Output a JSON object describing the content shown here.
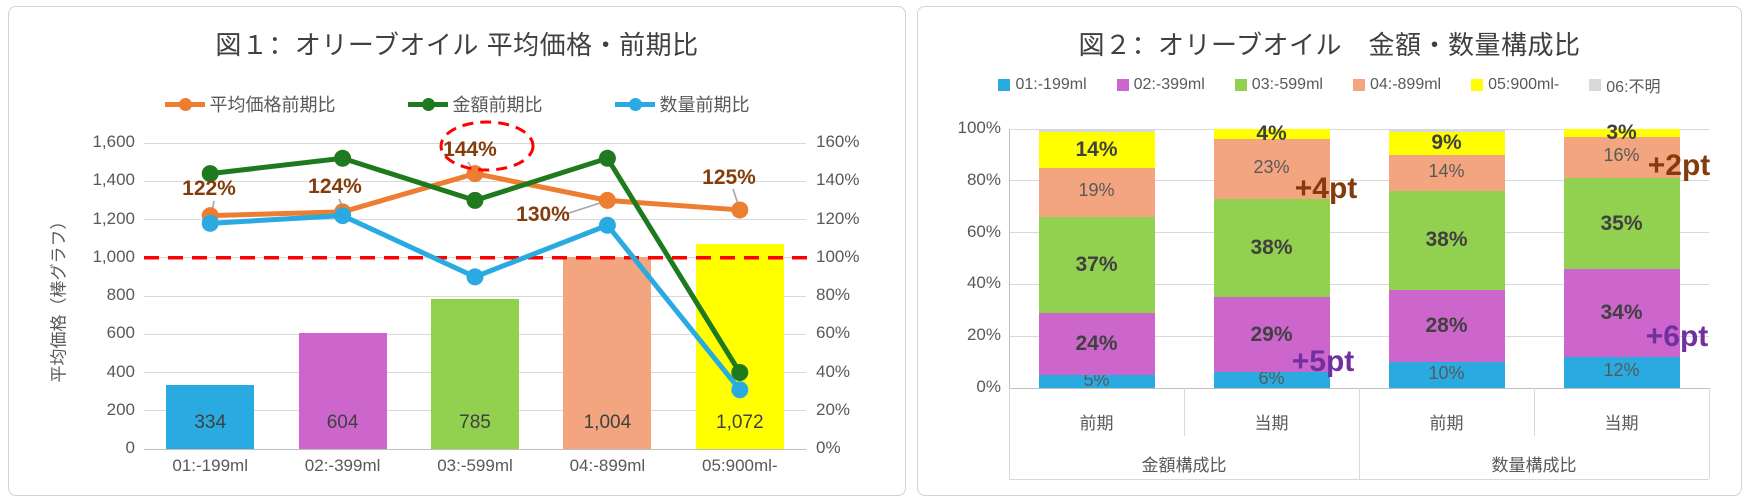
{
  "page": {
    "background": "#FFFFFF",
    "title_color": "#404040",
    "axis_text_color": "#595959"
  },
  "chart_data": [
    {
      "figure": "図１",
      "type": "combo-bar-line",
      "title": "図１：オリーブオイル 平均価格・前期比",
      "categories": [
        "01:-199ml",
        "02:-399ml",
        "03:-599ml",
        "04:-899ml",
        "05:900ml-"
      ],
      "bars": {
        "name": "平均価格",
        "axis_title": "平均価格（棒グラフ）",
        "values": [
          334,
          604,
          785,
          1004,
          1072
        ],
        "labels": [
          "334",
          "604",
          "785",
          "1,004",
          "1,072"
        ],
        "colors": [
          "#29ABE2",
          "#CC66CC",
          "#92D050",
          "#F2A57E",
          "#FFFF00"
        ]
      },
      "left_axis": {
        "min": 0,
        "max": 1600,
        "step": 200,
        "ticks": [
          "0",
          "200",
          "400",
          "600",
          "800",
          "1,000",
          "1,200",
          "1,400",
          "1,600"
        ]
      },
      "right_axis": {
        "min": 0,
        "max": 160,
        "step": 20,
        "ticks": [
          "0%",
          "20%",
          "40%",
          "60%",
          "80%",
          "100%",
          "120%",
          "140%",
          "160%"
        ]
      },
      "lines": [
        {
          "name": "平均価格前期比",
          "color": "#ED7D31",
          "values": [
            122,
            124,
            144,
            130,
            125
          ],
          "point_labels": [
            "122%",
            "124%",
            "144%",
            "130%",
            "125%"
          ],
          "label_color": "#843C0C"
        },
        {
          "name": "金額前期比",
          "color": "#1F7A1F",
          "values": [
            144,
            152,
            130,
            152,
            40
          ]
        },
        {
          "name": "数量前期比",
          "color": "#29ABE2",
          "values": [
            118,
            122,
            90,
            117,
            31
          ]
        }
      ],
      "reference_line": {
        "value": 100,
        "color": "#FF0000",
        "style": "dashed"
      },
      "highlight_ellipse": {
        "around_label": "144%",
        "color": "#FF0000",
        "style": "dashed"
      }
    },
    {
      "figure": "図２",
      "type": "stacked-bar-100",
      "title": "図２：オリーブオイル　金額・数量構成比",
      "legend": [
        "01:-199ml",
        "02:-399ml",
        "03:-599ml",
        "04:-899ml",
        "05:900ml-",
        "06:不明"
      ],
      "groups": [
        {
          "label": "金額構成比",
          "categories": [
            "前期",
            "当期"
          ]
        },
        {
          "label": "数量構成比",
          "categories": [
            "前期",
            "当期"
          ]
        }
      ],
      "y_axis": {
        "min": 0,
        "max": 100,
        "step": 20,
        "ticks": [
          "0%",
          "20%",
          "40%",
          "60%",
          "80%",
          "100%"
        ]
      },
      "series": [
        {
          "name": "01:-199ml",
          "color": "#29ABE2",
          "values": [
            5,
            6,
            10,
            12
          ],
          "labels": [
            "5%",
            "6%",
            "10%",
            "12%"
          ],
          "bold": false
        },
        {
          "name": "02:-399ml",
          "color": "#CC66CC",
          "values": [
            24,
            29,
            28,
            34
          ],
          "labels": [
            "24%",
            "29%",
            "28%",
            "34%"
          ],
          "bold": true
        },
        {
          "name": "03:-599ml",
          "color": "#92D050",
          "values": [
            37,
            38,
            38,
            35
          ],
          "labels": [
            "37%",
            "38%",
            "38%",
            "35%"
          ],
          "bold": true
        },
        {
          "name": "04:-899ml",
          "color": "#F2A57E",
          "values": [
            19,
            23,
            14,
            16
          ],
          "labels": [
            "19%",
            "23%",
            "14%",
            "16%"
          ],
          "bold": false
        },
        {
          "name": "05:900ml-",
          "color": "#FFFF00",
          "values": [
            14,
            4,
            9,
            3
          ],
          "labels": [
            "14%",
            "4%",
            "9%",
            "3%"
          ],
          "bold": true
        },
        {
          "name": "06:不明",
          "color": "#D9D9D9",
          "values": [
            1,
            0,
            1,
            0
          ],
          "labels": [
            "",
            "",
            "",
            ""
          ],
          "bold": false
        }
      ],
      "annotations": [
        {
          "text": "+4pt",
          "color": "#843C0C",
          "bar_index": 1,
          "series": "04:-899ml"
        },
        {
          "text": "+5pt",
          "color": "#7030A0",
          "bar_index": 1,
          "series": "02:-399ml"
        },
        {
          "text": "+2pt",
          "color": "#843C0C",
          "bar_index": 3,
          "series": "04:-899ml"
        },
        {
          "text": "+6pt",
          "color": "#7030A0",
          "bar_index": 3,
          "series": "02:-399ml"
        }
      ]
    }
  ]
}
